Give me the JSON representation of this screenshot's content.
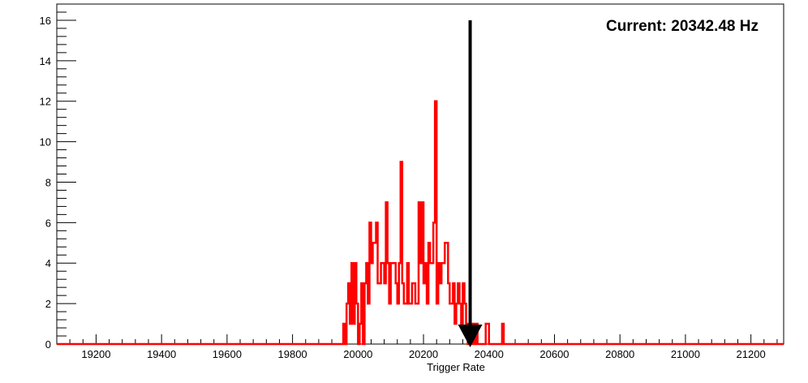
{
  "chart_data": {
    "type": "histogram",
    "title": "",
    "xlabel": "Trigger Rate",
    "ylabel": "",
    "xlim": [
      19080,
      21300
    ],
    "ylim": [
      0,
      16.8
    ],
    "x_ticks": [
      19200,
      19400,
      19600,
      19800,
      20000,
      20200,
      20400,
      20600,
      20800,
      21000,
      21200
    ],
    "y_ticks": [
      0,
      2,
      4,
      6,
      8,
      10,
      12,
      14,
      16
    ],
    "x_minor_step": 40,
    "y_minor_step": 0.4,
    "grid": false,
    "annotation": "Current: 20342.48 Hz",
    "current_value": 20342.48,
    "arrow_top_value": 16,
    "bin_width": 5,
    "series": [
      {
        "color": "#ff0000",
        "bins": [
          [
            19955,
            1
          ],
          [
            19965,
            2
          ],
          [
            19970,
            3
          ],
          [
            19975,
            1
          ],
          [
            19980,
            4
          ],
          [
            19985,
            1
          ],
          [
            19990,
            4
          ],
          [
            19995,
            2
          ],
          [
            20005,
            1
          ],
          [
            20010,
            3
          ],
          [
            20020,
            3
          ],
          [
            20025,
            4
          ],
          [
            20030,
            2
          ],
          [
            20035,
            6
          ],
          [
            20040,
            4
          ],
          [
            20045,
            5
          ],
          [
            20050,
            5
          ],
          [
            20055,
            6
          ],
          [
            20060,
            3
          ],
          [
            20065,
            3
          ],
          [
            20070,
            4
          ],
          [
            20075,
            4
          ],
          [
            20080,
            3
          ],
          [
            20085,
            7
          ],
          [
            20090,
            4
          ],
          [
            20095,
            2
          ],
          [
            20100,
            4
          ],
          [
            20105,
            4
          ],
          [
            20110,
            4
          ],
          [
            20115,
            3
          ],
          [
            20120,
            2
          ],
          [
            20125,
            4
          ],
          [
            20130,
            9
          ],
          [
            20135,
            3
          ],
          [
            20140,
            2
          ],
          [
            20145,
            2
          ],
          [
            20150,
            4
          ],
          [
            20155,
            2
          ],
          [
            20160,
            2
          ],
          [
            20165,
            3
          ],
          [
            20170,
            3
          ],
          [
            20175,
            2
          ],
          [
            20180,
            2
          ],
          [
            20185,
            7
          ],
          [
            20190,
            4
          ],
          [
            20195,
            7
          ],
          [
            20200,
            3
          ],
          [
            20205,
            4
          ],
          [
            20210,
            2
          ],
          [
            20215,
            5
          ],
          [
            20220,
            4
          ],
          [
            20225,
            4
          ],
          [
            20230,
            6
          ],
          [
            20235,
            12
          ],
          [
            20240,
            2
          ],
          [
            20245,
            4
          ],
          [
            20250,
            3
          ],
          [
            20255,
            4
          ],
          [
            20260,
            4
          ],
          [
            20265,
            5
          ],
          [
            20270,
            5
          ],
          [
            20275,
            3
          ],
          [
            20280,
            2
          ],
          [
            20285,
            2
          ],
          [
            20290,
            3
          ],
          [
            20295,
            1
          ],
          [
            20300,
            2
          ],
          [
            20305,
            3
          ],
          [
            20310,
            2
          ],
          [
            20315,
            1
          ],
          [
            20320,
            3
          ],
          [
            20325,
            2
          ],
          [
            20330,
            1
          ],
          [
            20340,
            1
          ],
          [
            20350,
            1
          ],
          [
            20360,
            1
          ],
          [
            20390,
            1
          ],
          [
            20395,
            1
          ],
          [
            20440,
            1
          ]
        ]
      }
    ]
  }
}
